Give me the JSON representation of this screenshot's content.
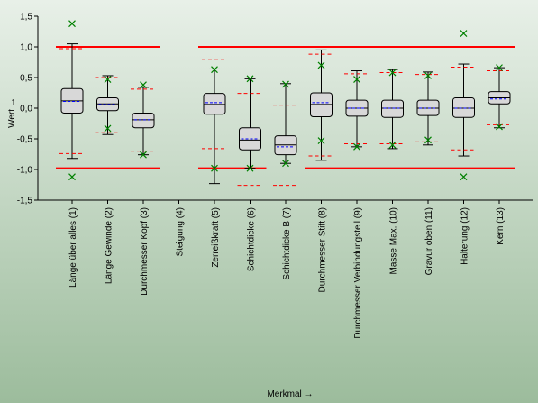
{
  "chart_data": {
    "type": "box",
    "ylabel": "Wert →",
    "xlabel": "Merkmal →",
    "ylim": [
      -1.5,
      1.5
    ],
    "yticks": [
      "-1,5",
      "-1,0",
      "-0,5",
      "0,0",
      "0,5",
      "1,0",
      "1,5"
    ],
    "yticks_values": [
      -1.5,
      -1.0,
      -0.5,
      0.0,
      0.5,
      1.0,
      1.5
    ],
    "grid": false,
    "colors": {
      "background_top": "#e8f0e8",
      "background_bottom": "#9cbc9c",
      "box_fill": "#d8d8d8",
      "tolerance_line": "#ff0000",
      "control_limit": "#ff0000",
      "median": "#000000",
      "mean": "#0000ff",
      "extreme_marker": "#008000"
    },
    "categories": [
      "Länge über alles (1)",
      "Länge Gewinde (2)",
      "Durchmesser Kopf (3)",
      "Steigung (4)",
      "Zerreißkraft (5)",
      "Schichtdicke (6)",
      "Schichtdicke B (7)",
      "Durchmesser Stift (8)",
      "Durchmesser Verbindungsteil (9)",
      "Masse Max. (10)",
      "Gravur oben (11)",
      "Halterung (12)",
      "Kern (13)"
    ],
    "boxes": [
      {
        "q1": -0.08,
        "median": 0.12,
        "q3": 0.32,
        "mean": 0.11,
        "whisker_low": -0.82,
        "whisker_high": 1.05,
        "min": -1.12,
        "max": 1.38,
        "cl_low": -0.74,
        "cl_high": 0.97
      },
      {
        "q1": -0.04,
        "median": 0.07,
        "q3": 0.17,
        "mean": 0.06,
        "whisker_low": -0.43,
        "whisker_high": 0.53,
        "min": -0.33,
        "max": 0.47,
        "cl_low": -0.4,
        "cl_high": 0.5
      },
      {
        "q1": -0.32,
        "median": -0.19,
        "q3": -0.08,
        "mean": -0.19,
        "whisker_low": -0.76,
        "whisker_high": 0.34,
        "min": -0.76,
        "max": 0.38,
        "cl_low": -0.7,
        "cl_high": 0.31
      },
      null,
      {
        "q1": -0.1,
        "median": 0.06,
        "q3": 0.24,
        "mean": 0.09,
        "whisker_low": -1.23,
        "whisker_high": 0.64,
        "min": -0.98,
        "max": 0.63,
        "cl_low": -0.66,
        "cl_high": 0.79
      },
      {
        "q1": -0.68,
        "median": -0.52,
        "q3": -0.32,
        "mean": -0.5,
        "whisker_low": -0.98,
        "whisker_high": 0.48,
        "min": -0.98,
        "max": 0.48,
        "cl_low": -1.26,
        "cl_high": 0.24
      },
      {
        "q1": -0.76,
        "median": -0.6,
        "q3": -0.45,
        "mean": -0.63,
        "whisker_low": -0.9,
        "whisker_high": 0.4,
        "min": -0.9,
        "max": 0.39,
        "cl_low": -1.26,
        "cl_high": 0.05
      },
      {
        "q1": -0.14,
        "median": 0.06,
        "q3": 0.25,
        "mean": 0.09,
        "whisker_low": -0.85,
        "whisker_high": 0.95,
        "min": -0.53,
        "max": 0.7,
        "cl_low": -0.78,
        "cl_high": 0.88
      },
      {
        "q1": -0.13,
        "median": 0.0,
        "q3": 0.13,
        "mean": 0.0,
        "whisker_low": -0.63,
        "whisker_high": 0.61,
        "min": -0.63,
        "max": 0.47,
        "cl_low": -0.58,
        "cl_high": 0.56
      },
      {
        "q1": -0.15,
        "median": 0.0,
        "q3": 0.13,
        "mean": 0.0,
        "whisker_low": -0.66,
        "whisker_high": 0.63,
        "min": -0.6,
        "max": 0.58,
        "cl_low": -0.58,
        "cl_high": 0.58
      },
      {
        "q1": -0.12,
        "median": 0.0,
        "q3": 0.13,
        "mean": 0.0,
        "whisker_low": -0.6,
        "whisker_high": 0.59,
        "min": -0.52,
        "max": 0.53,
        "cl_low": -0.55,
        "cl_high": 0.55
      },
      {
        "q1": -0.15,
        "median": 0.0,
        "q3": 0.17,
        "mean": 0.0,
        "whisker_low": -0.78,
        "whisker_high": 0.72,
        "min": -1.12,
        "max": 1.22,
        "cl_low": -0.68,
        "cl_high": 0.67
      },
      {
        "q1": 0.07,
        "median": 0.17,
        "q3": 0.27,
        "mean": 0.15,
        "whisker_low": -0.32,
        "whisker_high": 0.66,
        "min": -0.3,
        "max": 0.66,
        "cl_low": -0.27,
        "cl_high": 0.61
      }
    ],
    "tolerance_segments": [
      {
        "from": 1,
        "to": 3,
        "upper": 1.0,
        "lower": -0.98
      },
      {
        "from": 5,
        "to": 13,
        "upper": 1.0,
        "lower": null
      },
      {
        "from": 5,
        "to": 6,
        "upper": null,
        "lower": -0.98
      },
      {
        "from": 8,
        "to": 13,
        "upper": null,
        "lower": -0.98
      }
    ]
  }
}
